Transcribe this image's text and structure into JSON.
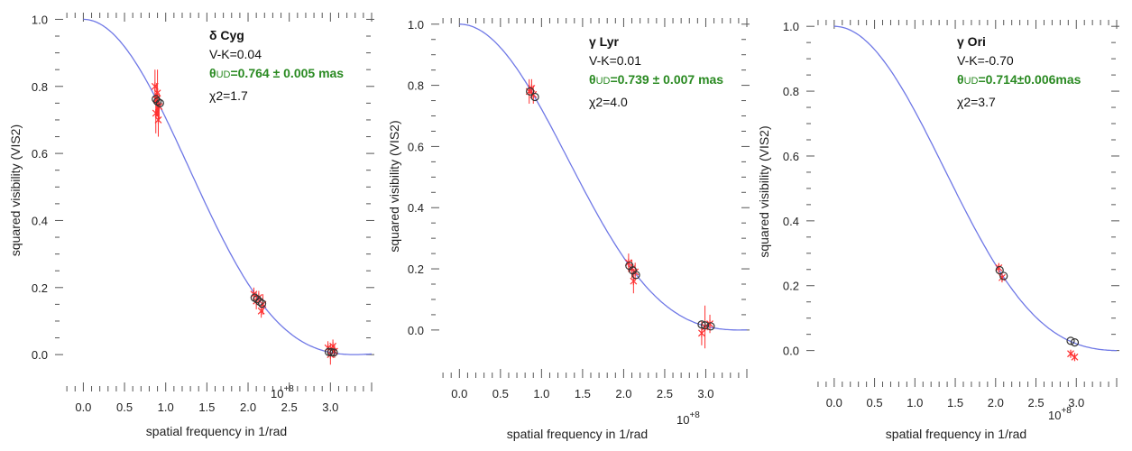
{
  "chart_data": [
    {
      "type": "scatter",
      "star": "δ Cyg",
      "vk": "V-K=0.04",
      "theta_prefix": "θ",
      "theta_sub": "UD",
      "theta_rest": "=0.764 ± 0.005 mas",
      "chi2": "χ2=1.7",
      "xlabel": "spatial frequency in 1/rad",
      "ylabel": "squared visibility (VIS2)",
      "x_multiplier": "10+8",
      "xlim": [
        -0.3,
        3.5
      ],
      "ylim": [
        -0.04,
        1.02
      ],
      "xticks": [
        "0.0",
        "0.5",
        "1.0",
        "1.5",
        "2.0",
        "2.5",
        "3.0"
      ],
      "yticks": [
        "0.0",
        "0.2",
        "0.4",
        "0.6",
        "0.8",
        "1.0"
      ],
      "theta_mas": 0.764,
      "model_points": [
        [
          0.88,
          0.762
        ],
        [
          0.9,
          0.755
        ],
        [
          0.93,
          0.75
        ],
        [
          2.08,
          0.17
        ],
        [
          2.11,
          0.165
        ],
        [
          2.14,
          0.158
        ],
        [
          2.17,
          0.152
        ],
        [
          2.98,
          0.008
        ],
        [
          3.01,
          0.007
        ],
        [
          3.04,
          0.006
        ]
      ],
      "measurements": [
        [
          0.87,
          0.8,
          0.05
        ],
        [
          0.88,
          0.72,
          0.06
        ],
        [
          0.9,
          0.78,
          0.07
        ],
        [
          0.91,
          0.7,
          0.05
        ],
        [
          0.92,
          0.74,
          0.04
        ],
        [
          0.89,
          0.76,
          0.05
        ],
        [
          2.07,
          0.18,
          0.02
        ],
        [
          2.1,
          0.16,
          0.025
        ],
        [
          2.13,
          0.17,
          0.02
        ],
        [
          2.16,
          0.13,
          0.02
        ],
        [
          2.18,
          0.15,
          0.03
        ],
        [
          2.97,
          0.02,
          0.02
        ],
        [
          3.0,
          0.0,
          0.03
        ],
        [
          3.03,
          0.025,
          0.02
        ],
        [
          3.05,
          0.01,
          0.02
        ]
      ]
    },
    {
      "type": "scatter",
      "star": "γ Lyr",
      "vk": "V-K=0.01",
      "theta_prefix": "θ",
      "theta_sub": "UD",
      "theta_rest": "=0.739 ± 0.007 mas",
      "chi2": "χ2=4.0",
      "xlabel": "spatial frequency in 1/rad",
      "ylabel": "squared visibility (VIS2)",
      "x_multiplier": "10+8",
      "xlim": [
        -0.3,
        3.5
      ],
      "ylim": [
        -0.08,
        1.02
      ],
      "xticks": [
        "0.0",
        "0.5",
        "1.0",
        "1.5",
        "2.0",
        "2.5",
        "3.0"
      ],
      "yticks": [
        "0.0",
        "0.2",
        "0.4",
        "0.6",
        "0.8",
        "1.0"
      ],
      "theta_mas": 0.739,
      "model_points": [
        [
          0.86,
          0.78
        ],
        [
          0.92,
          0.762
        ],
        [
          2.07,
          0.21
        ],
        [
          2.11,
          0.195
        ],
        [
          2.15,
          0.18
        ],
        [
          2.95,
          0.018
        ],
        [
          2.99,
          0.015
        ],
        [
          3.06,
          0.012
        ]
      ],
      "measurements": [
        [
          0.85,
          0.78,
          0.04
        ],
        [
          0.88,
          0.79,
          0.03
        ],
        [
          0.9,
          0.77,
          0.03
        ],
        [
          2.06,
          0.22,
          0.03
        ],
        [
          2.1,
          0.2,
          0.03
        ],
        [
          2.12,
          0.16,
          0.04
        ],
        [
          2.14,
          0.19,
          0.03
        ],
        [
          2.95,
          -0.01,
          0.04
        ],
        [
          2.99,
          0.01,
          0.07
        ],
        [
          3.05,
          0.02,
          0.03
        ]
      ]
    },
    {
      "type": "scatter",
      "star": "γ Ori",
      "vk": "V-K=-0.70",
      "theta_prefix": "θ",
      "theta_sub": "UD",
      "theta_rest": "=0.714±0.006mas",
      "chi2": "χ2=3.7",
      "xlabel": "spatial frequency in 1/rad",
      "ylabel": "squared visibility (VIS2)",
      "x_multiplier": "10+8",
      "xlim": [
        -0.3,
        3.5
      ],
      "ylim": [
        -0.04,
        1.02
      ],
      "xticks": [
        "0.0",
        "0.5",
        "1.0",
        "1.5",
        "2.0",
        "2.5",
        "3.0"
      ],
      "yticks": [
        "0.0",
        "0.2",
        "0.4",
        "0.6",
        "0.8",
        "1.0"
      ],
      "theta_mas": 0.714,
      "model_points": [
        [
          2.05,
          0.248
        ],
        [
          2.1,
          0.23
        ],
        [
          2.93,
          0.03
        ],
        [
          2.98,
          0.025
        ]
      ],
      "measurements": [
        [
          2.04,
          0.255,
          0.015
        ],
        [
          2.08,
          0.225,
          0.015
        ],
        [
          2.93,
          -0.01,
          0.01
        ],
        [
          2.98,
          -0.02,
          0.01
        ]
      ]
    }
  ]
}
